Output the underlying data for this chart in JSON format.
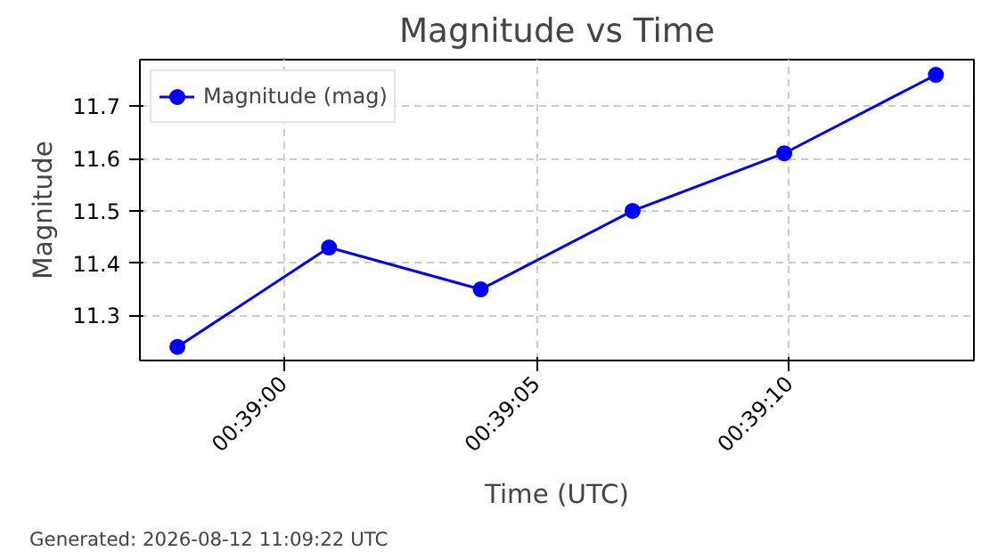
{
  "chart_data": {
    "type": "line",
    "title": "Magnitude vs Time",
    "xlabel": "Time (UTC)",
    "ylabel": "Magnitude",
    "x": [
      0.649417,
      0.65025,
      0.651083,
      0.651917,
      0.65275,
      0.653583
    ],
    "series": [
      {
        "name": "Magnitude (mag)",
        "color": "#0000ff",
        "values": [
          11.24,
          11.43,
          11.35,
          11.5,
          11.61,
          11.76
        ]
      }
    ],
    "xlim": [
      0.649211,
      0.653792
    ],
    "xticks": [
      {
        "value": 0.65,
        "label": "00:39:00"
      },
      {
        "value": 0.651389,
        "label": "00:39:05"
      },
      {
        "value": 0.652778,
        "label": "00:39:10"
      }
    ],
    "ylim": [
      11.214,
      11.789
    ],
    "yticks": [
      11.3,
      11.4,
      11.5,
      11.6,
      11.7
    ],
    "grid": true,
    "legend": "top left",
    "marker": "circle",
    "line_style": "solid",
    "annotations": [
      "Generated: 2026-08-12 11:09:22 UTC"
    ]
  }
}
